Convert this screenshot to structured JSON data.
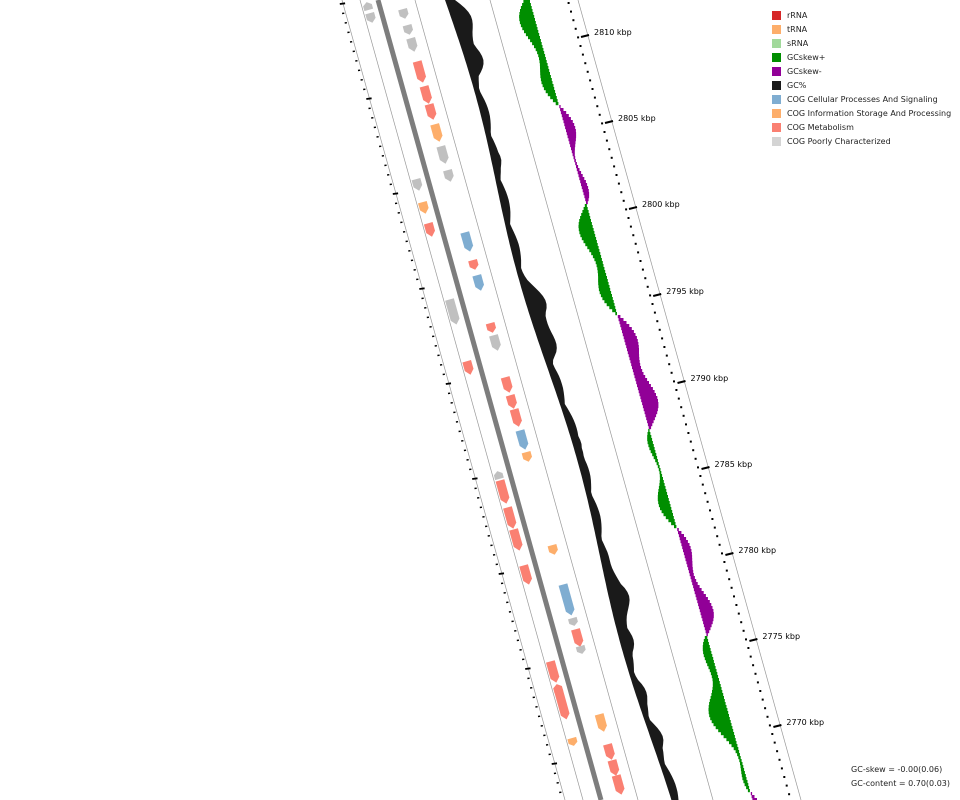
{
  "ticks": [
    "2810 kbp",
    "2805 kbp",
    "2800 kbp",
    "2795 kbp",
    "2790 kbp",
    "2785 kbp",
    "2780 kbp",
    "2775 kbp",
    "2770 kbp"
  ],
  "legend": [
    {
      "label": "rRNA",
      "color": "#d62728"
    },
    {
      "label": "tRNA",
      "color": "#fdae6b"
    },
    {
      "label": "sRNA",
      "color": "#a1d99b"
    },
    {
      "label": "GCskew+",
      "color": "#008e00"
    },
    {
      "label": "GCskew-",
      "color": "#910097"
    },
    {
      "label": "GC%",
      "color": "#1a1a1a"
    },
    {
      "label": "COG Cellular Processes And Signaling",
      "color": "#7fadd1"
    },
    {
      "label": "COG Information Storage And Processing",
      "color": "#fdae6b"
    },
    {
      "label": "COG Metabolism",
      "color": "#fa8072"
    },
    {
      "label": "COG Poorly Characterized",
      "color": "#d4d4d4"
    }
  ],
  "stats": {
    "gc_skew": "GC-skew = -0.00(0.06)",
    "gc_content": "GC-content = 0.70(0.03)"
  }
}
